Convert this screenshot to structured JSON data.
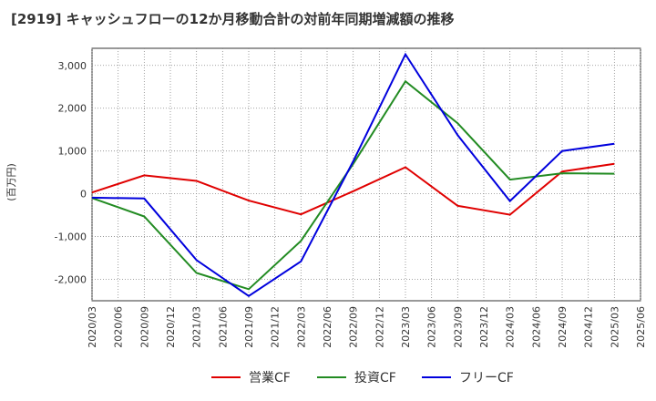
{
  "chart_data": {
    "type": "line",
    "title": "[2919]  キャッシュフローの12か月移動合計の対前年同期増減額の推移",
    "ylabel": "(百万円)",
    "xlabel": "",
    "ylim": [
      -2500,
      3400
    ],
    "yticks": [
      3000,
      2000,
      1000,
      0,
      -1000,
      -2000
    ],
    "ytick_labels": [
      "3,000",
      "2,000",
      "1,000",
      "0",
      "-1,000",
      "-2,000"
    ],
    "x_ticks": [
      "2020/03",
      "2020/06",
      "2020/09",
      "2020/12",
      "2021/03",
      "2021/06",
      "2021/09",
      "2021/12",
      "2022/03",
      "2022/06",
      "2022/09",
      "2022/12",
      "2023/03",
      "2023/06",
      "2023/09",
      "2023/12",
      "2024/03",
      "2024/06",
      "2024/09",
      "2024/12",
      "2025/03",
      "2025/06"
    ],
    "grid": true,
    "legend_position": "bottom",
    "series": [
      {
        "name": "営業CF",
        "color": "#e00000",
        "x": [
          "2020/03",
          "2020/09",
          "2021/03",
          "2021/09",
          "2022/03",
          "2022/09",
          "2023/03",
          "2023/09",
          "2024/03",
          "2024/09",
          "2025/03"
        ],
        "values": [
          30,
          430,
          300,
          -160,
          -480,
          60,
          620,
          -280,
          -490,
          520,
          700
        ]
      },
      {
        "name": "投資CF",
        "color": "#228b22",
        "x": [
          "2020/03",
          "2020/09",
          "2021/03",
          "2021/09",
          "2022/03",
          "2022/09",
          "2023/03",
          "2023/09",
          "2024/03",
          "2024/09",
          "2025/03"
        ],
        "values": [
          -100,
          -530,
          -1850,
          -2230,
          -1100,
          700,
          2630,
          1650,
          330,
          480,
          470
        ]
      },
      {
        "name": "フリーCF",
        "color": "#0000dd",
        "x": [
          "2020/03",
          "2020/09",
          "2021/03",
          "2021/09",
          "2022/03",
          "2022/09",
          "2023/03",
          "2023/09",
          "2024/03",
          "2024/09",
          "2025/03"
        ],
        "values": [
          -90,
          -110,
          -1550,
          -2390,
          -1580,
          760,
          3260,
          1370,
          -170,
          1000,
          1170
        ]
      }
    ]
  }
}
